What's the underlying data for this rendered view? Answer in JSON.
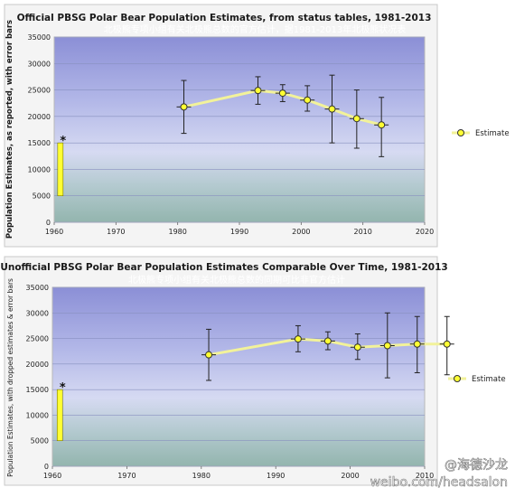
{
  "chart_data": [
    {
      "type": "line",
      "title": "Official PBSG Polar Bear Population Estimates, from status tables, 1981-2013",
      "subtitle": "北极熊专项小组有关北极熊总数的官方估计，据1981-2013年北极熊状况表",
      "ylabel": "Population Estimates, as reported, with error bars",
      "xlabel": "",
      "xlim": [
        1960,
        2020
      ],
      "ylim": [
        0,
        35000
      ],
      "x_ticks": [
        "1960",
        "1970",
        "1980",
        "1990",
        "2000",
        "2010",
        "2020"
      ],
      "y_ticks": [
        "0",
        "5000",
        "10000",
        "15000",
        "20000",
        "25000",
        "30000",
        "35000"
      ],
      "legend": "right",
      "series": [
        {
          "name": "Estimate",
          "x": [
            1981,
            1993,
            1997,
            2001,
            2005,
            2009,
            2013
          ],
          "y": [
            21800,
            24900,
            24400,
            23100,
            21400,
            19600,
            18400
          ],
          "error_low": [
            16800,
            22300,
            22800,
            21000,
            15000,
            14000,
            12400
          ],
          "error_high": [
            26800,
            27500,
            26000,
            25800,
            27800,
            25000,
            23600
          ]
        }
      ],
      "annotation": {
        "label": "*",
        "x": 1961,
        "y_low": 5000,
        "y_high": 15000
      }
    },
    {
      "type": "line",
      "title": "Unofficial PBSG Polar Bear Population Estimates Comparable Over Time, 1981-2013",
      "subtitle": "北极熊专项小组有关北极熊总数的同期可比非官方估计",
      "ylabel": "Population Estimates, with dropped estimates & error bars",
      "xlabel": "",
      "xlim": [
        1960,
        2010
      ],
      "ylim": [
        0,
        35000
      ],
      "x_ticks": [
        "1960",
        "1970",
        "1980",
        "1990",
        "2000",
        "2010"
      ],
      "y_ticks": [
        "0",
        "5000",
        "10000",
        "15000",
        "20000",
        "25000",
        "30000",
        "35000"
      ],
      "legend": "right",
      "series": [
        {
          "name": "Estimate",
          "x": [
            1981,
            1993,
            1997,
            2001,
            2005,
            2009,
            2013
          ],
          "y": [
            21800,
            24900,
            24500,
            23300,
            23600,
            23900,
            23900
          ],
          "error_low": [
            16800,
            22400,
            22800,
            20900,
            17300,
            18300,
            17900
          ],
          "error_high": [
            26800,
            27500,
            26300,
            25900,
            30000,
            29300,
            29300
          ]
        }
      ],
      "annotation": {
        "label": "*",
        "x": 1961,
        "y_low": 5000,
        "y_high": 15000
      }
    }
  ],
  "watermark": {
    "brand": "@海德沙龙",
    "url": "weibo.com/headsalon"
  },
  "colors": {
    "line": "#f2f29a",
    "marker_fill": "#ffff33",
    "bar": "#ffff33",
    "plot_top": "#b9bfe8",
    "plot_bottom": "#9fbcb8",
    "title": "#1a1a1a",
    "subtitle": "#ffffff"
  }
}
